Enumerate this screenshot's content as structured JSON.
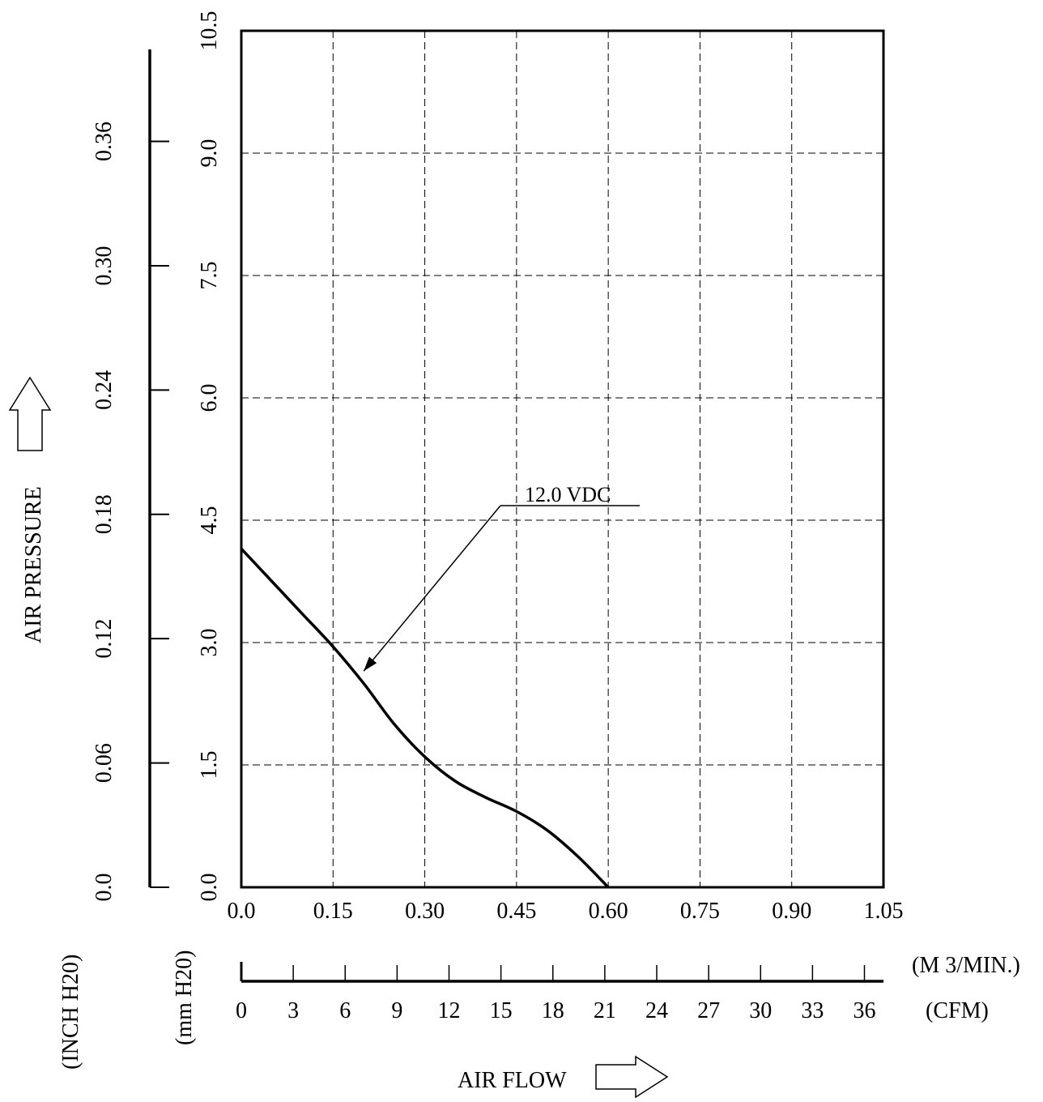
{
  "chart_data": {
    "type": "line",
    "title": "",
    "xlabel": "AIR FLOW",
    "ylabel": "AIR PRESSURE",
    "x_unit_primary": "(M 3/MIN.)",
    "x_unit_secondary": "(CFM)",
    "y_unit_primary": "(mm H20)",
    "y_unit_secondary": "(INCH H20)",
    "xlim": [
      0,
      1.05
    ],
    "ylim": [
      0,
      10.5
    ],
    "grid": true,
    "x_ticks_primary": [
      "0.0",
      "0.15",
      "0.30",
      "0.45",
      "0.60",
      "0.75",
      "0.90",
      "1.05"
    ],
    "x_ticks_secondary": [
      "0",
      "3",
      "6",
      "9",
      "12",
      "15",
      "18",
      "21",
      "24",
      "27",
      "30",
      "33",
      "36"
    ],
    "y_ticks_primary": [
      "0.0",
      "1.5",
      "3.0",
      "4.5",
      "6.0",
      "7.5",
      "9.0",
      "10.5"
    ],
    "y_ticks_secondary": [
      "0.0",
      "0.06",
      "0.12",
      "0.18",
      "0.24",
      "0.30",
      "0.36"
    ],
    "series": [
      {
        "name": "12.0 VDC",
        "x": [
          0.0,
          0.05,
          0.1,
          0.15,
          0.2,
          0.25,
          0.3,
          0.35,
          0.4,
          0.45,
          0.5,
          0.55,
          0.6
        ],
        "y": [
          4.15,
          3.75,
          3.35,
          2.95,
          2.5,
          2.0,
          1.6,
          1.3,
          1.1,
          0.93,
          0.7,
          0.38,
          0.0
        ]
      }
    ],
    "annotations": [
      {
        "text": "12.0 VDC",
        "target_x": 0.2,
        "target_y": 2.65
      }
    ]
  }
}
